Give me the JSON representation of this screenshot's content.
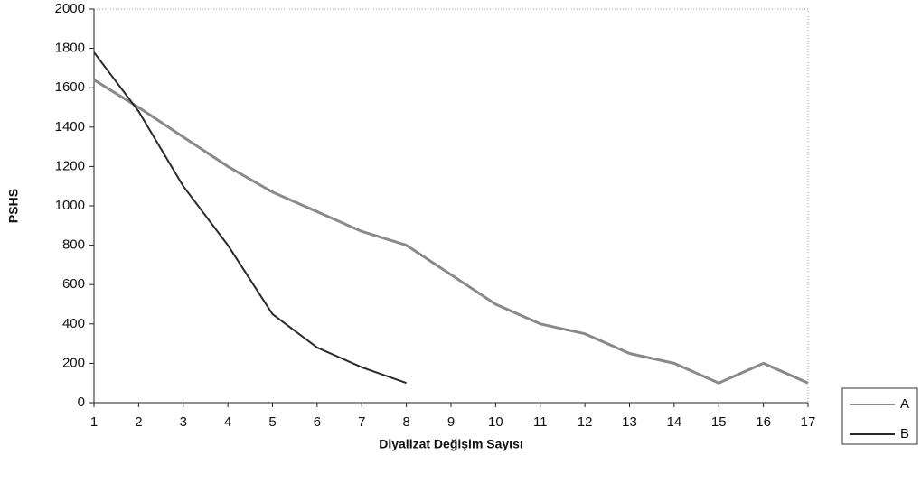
{
  "chart_data": {
    "type": "line",
    "x_label": "Diyalizat Değişim Sayısı",
    "y_label": "PSHS",
    "x": [
      1,
      2,
      3,
      4,
      5,
      6,
      7,
      8,
      9,
      10,
      11,
      12,
      13,
      14,
      15,
      16,
      17
    ],
    "series": [
      {
        "name": "A",
        "color": "#8a8a8a",
        "values": [
          1640,
          1500,
          1350,
          1200,
          1070,
          970,
          870,
          800,
          650,
          500,
          400,
          350,
          250,
          200,
          100,
          200,
          100
        ]
      },
      {
        "name": "B",
        "color": "#2a2a2a",
        "values": [
          1780,
          1480,
          1100,
          800,
          450,
          280,
          180,
          100,
          null,
          null,
          null,
          null,
          null,
          null,
          null,
          null,
          null
        ]
      }
    ],
    "xlim": [
      1,
      17
    ],
    "xticks": [
      1,
      2,
      3,
      4,
      5,
      6,
      7,
      8,
      9,
      10,
      11,
      12,
      13,
      14,
      15,
      16,
      17
    ],
    "ylim": [
      0,
      2000
    ],
    "yticks": [
      0,
      200,
      400,
      600,
      800,
      1000,
      1200,
      1400,
      1600,
      1800,
      2000
    ],
    "legend": "right"
  }
}
